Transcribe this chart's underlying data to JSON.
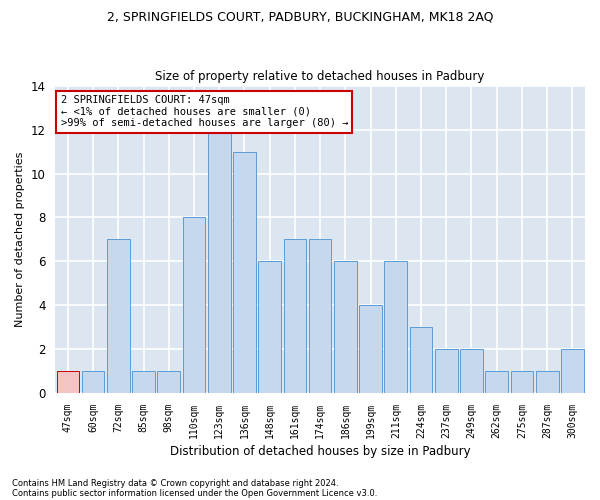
{
  "title1": "2, SPRINGFIELDS COURT, PADBURY, BUCKINGHAM, MK18 2AQ",
  "title2": "Size of property relative to detached houses in Padbury",
  "xlabel": "Distribution of detached houses by size in Padbury",
  "ylabel": "Number of detached properties",
  "categories": [
    "47sqm",
    "60sqm",
    "72sqm",
    "85sqm",
    "98sqm",
    "110sqm",
    "123sqm",
    "136sqm",
    "148sqm",
    "161sqm",
    "174sqm",
    "186sqm",
    "199sqm",
    "211sqm",
    "224sqm",
    "237sqm",
    "249sqm",
    "262sqm",
    "275sqm",
    "287sqm",
    "300sqm"
  ],
  "values": [
    1,
    1,
    7,
    1,
    1,
    8,
    12,
    11,
    6,
    7,
    7,
    6,
    4,
    6,
    3,
    2,
    2,
    1,
    1,
    1,
    2
  ],
  "bar_color": "#c5d8ed",
  "bar_edge_color": "#5b9bd5",
  "highlight_bar_index": 0,
  "highlight_color": "#f2c4c4",
  "highlight_edge_color": "#cc0000",
  "bg_color": "#dce6f0",
  "grid_color": "#ffffff",
  "annotation_text": "2 SPRINGFIELDS COURT: 47sqm\n← <1% of detached houses are smaller (0)\n>99% of semi-detached houses are larger (80) →",
  "annotation_box_edge": "#cc0000",
  "footer1": "Contains HM Land Registry data © Crown copyright and database right 2024.",
  "footer2": "Contains public sector information licensed under the Open Government Licence v3.0.",
  "ylim": [
    0,
    14
  ],
  "yticks": [
    0,
    2,
    4,
    6,
    8,
    10,
    12,
    14
  ]
}
